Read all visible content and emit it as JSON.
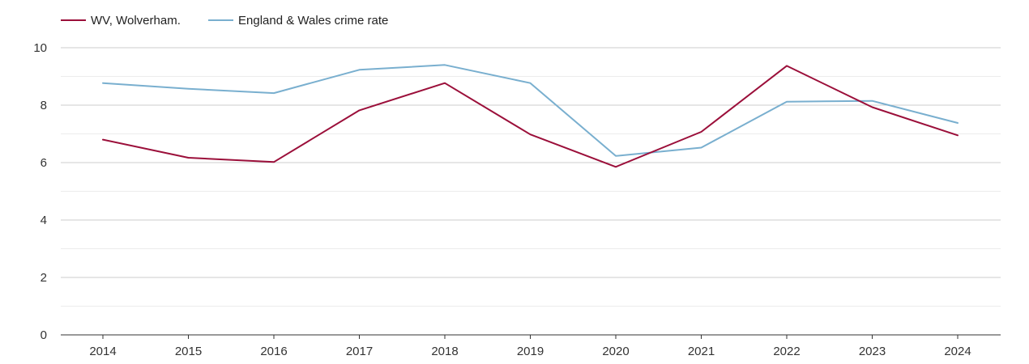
{
  "chart_data": {
    "type": "line",
    "title": "",
    "xlabel": "",
    "ylabel": "",
    "x": [
      "2014",
      "2015",
      "2016",
      "2017",
      "2018",
      "2019",
      "2020",
      "2021",
      "2022",
      "2023",
      "2024"
    ],
    "ylim": [
      0,
      10
    ],
    "yticks": [
      "0",
      "2",
      "4",
      "6",
      "8",
      "10"
    ],
    "grid": true,
    "legend_position": "top-left",
    "series": [
      {
        "name": "WV, Wolverham.",
        "color": "#9b0f3a",
        "values": [
          6.8,
          6.17,
          6.02,
          7.82,
          8.77,
          6.98,
          5.85,
          7.07,
          9.37,
          7.93,
          6.95
        ]
      },
      {
        "name": "England & Wales crime rate",
        "color": "#79afcf",
        "values": [
          8.77,
          8.57,
          8.42,
          9.23,
          9.4,
          8.77,
          6.23,
          6.52,
          8.12,
          8.15,
          7.38
        ]
      }
    ]
  }
}
